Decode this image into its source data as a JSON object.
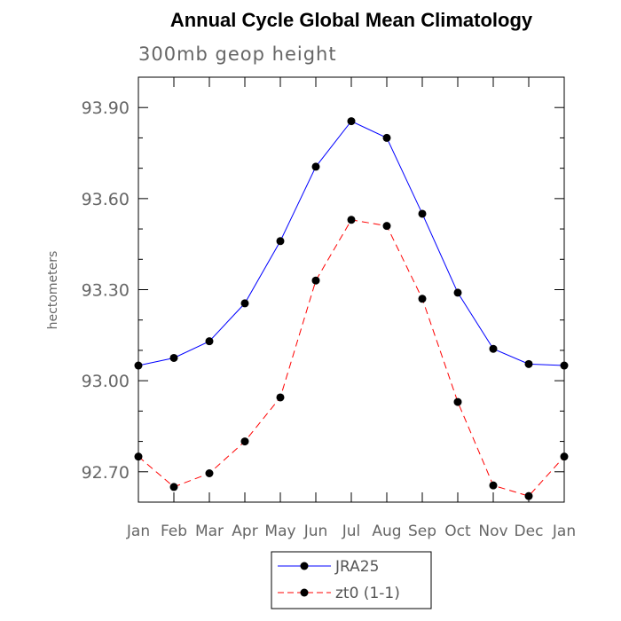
{
  "chart_data": {
    "type": "line",
    "title": "Annual Cycle Global Mean Climatology",
    "subtitle": "300mb geop height",
    "xlabel": "",
    "ylabel": "hectometers",
    "categories": [
      "Jan",
      "Feb",
      "Mar",
      "Apr",
      "May",
      "Jun",
      "Jul",
      "Aug",
      "Sep",
      "Oct",
      "Nov",
      "Dec",
      "Jan"
    ],
    "yticks": [
      "92.70",
      "93.00",
      "93.30",
      "93.60",
      "93.90"
    ],
    "ylim": [
      92.6,
      94.0
    ],
    "grid": false,
    "legend_position": "bottom-center",
    "series": [
      {
        "name": "JRA25",
        "color": "#0000ff",
        "dash": "solid",
        "values": [
          93.05,
          93.075,
          93.13,
          93.255,
          93.46,
          93.705,
          93.855,
          93.8,
          93.55,
          93.29,
          93.105,
          93.055,
          93.05
        ]
      },
      {
        "name": "zt0 (1-1)",
        "color": "#ff0000",
        "dash": "dashed",
        "values": [
          92.75,
          92.65,
          92.695,
          92.8,
          92.945,
          93.33,
          93.53,
          93.51,
          93.27,
          92.93,
          92.655,
          92.62,
          92.75
        ]
      }
    ]
  }
}
